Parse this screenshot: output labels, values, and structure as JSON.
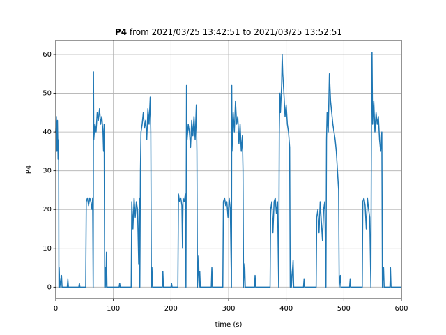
{
  "chart_data": {
    "type": "line",
    "title": {
      "bold": "P4",
      "rest": "from 2021/03/25 13:42:51 to 2021/03/25 13:52:51"
    },
    "x_label": "time (s)",
    "y_label": "P4",
    "xlim": [
      0,
      600
    ],
    "ylim": [
      -3.0,
      63.6
    ],
    "xticks": [
      0,
      100,
      200,
      300,
      400,
      500,
      600
    ],
    "yticks": [
      0,
      10,
      20,
      30,
      40,
      50,
      60
    ],
    "grid": true,
    "series": [
      {
        "name": "P4",
        "color": "#1f77b4",
        "x": [
          0,
          1,
          2,
          3,
          4,
          5,
          5.5,
          6,
          7,
          10,
          11,
          20,
          21,
          22,
          40,
          41,
          42,
          50,
          52,
          53,
          55,
          57,
          59,
          61,
          63,
          64,
          65,
          65.5,
          66,
          68,
          70,
          72,
          74,
          76,
          78,
          80,
          82,
          83,
          84,
          85,
          86,
          87,
          88,
          89,
          95,
          110,
          111,
          112,
          131,
          132,
          134,
          136,
          138,
          140,
          142,
          144,
          145,
          146,
          147,
          148,
          150,
          152,
          154,
          156,
          158,
          160,
          162,
          164,
          165,
          166,
          167,
          168,
          185,
          186,
          187,
          200,
          201,
          202,
          212,
          213,
          215,
          217,
          219,
          220,
          221,
          223,
          225,
          226,
          227,
          228,
          230,
          232,
          234,
          236,
          238,
          240,
          242,
          244,
          245,
          246,
          248,
          249,
          250,
          251,
          270,
          271,
          272,
          290,
          291,
          293,
          295,
          297,
          299,
          301,
          303,
          305,
          305.5,
          306,
          308,
          310,
          312,
          314,
          316,
          318,
          320,
          322,
          324,
          325,
          326,
          328,
          329,
          345,
          346,
          347,
          372,
          373,
          375,
          377,
          379,
          381,
          383,
          385,
          387,
          388,
          389,
          390,
          392,
          393,
          394,
          396,
          398,
          400,
          402,
          404,
          406,
          407,
          408,
          409,
          412,
          413,
          430,
          431,
          432,
          452,
          453,
          455,
          457,
          459,
          461,
          463,
          465,
          467,
          469,
          470,
          471,
          473,
          475,
          477,
          479,
          481,
          483,
          485,
          487,
          489,
          491,
          492,
          494,
          495,
          510,
          511,
          512,
          532,
          533,
          535,
          537,
          539,
          541,
          543,
          545,
          547,
          548,
          549,
          550,
          552,
          554,
          556,
          558,
          560,
          562,
          564,
          566,
          567,
          569,
          570,
          580,
          581,
          582,
          600
        ],
        "values": [
          40,
          44,
          35,
          43,
          33,
          38,
          0,
          5,
          0,
          3,
          0,
          0,
          2,
          0,
          0,
          1,
          0,
          0,
          0,
          22,
          23,
          21,
          23,
          22,
          20,
          23,
          0,
          55.5,
          38,
          42,
          40,
          45,
          43,
          46,
          42,
          44,
          40,
          35,
          42,
          0,
          5,
          0,
          9,
          0,
          0,
          0,
          1,
          0,
          0,
          22,
          15,
          23,
          18,
          22,
          20,
          6,
          23,
          0,
          30,
          40,
          42,
          45,
          41,
          43,
          38,
          46,
          42,
          49,
          40,
          0,
          5,
          0,
          0,
          4,
          0,
          0,
          1,
          0,
          0,
          24,
          22,
          23,
          21,
          10,
          23,
          22,
          24,
          0,
          52,
          38,
          42,
          40,
          36,
          43,
          39,
          44,
          38,
          47,
          35,
          0,
          8,
          0,
          4,
          0,
          0,
          5,
          0,
          0,
          22,
          23,
          21,
          22,
          18,
          23,
          20,
          0,
          52,
          35,
          45,
          40,
          48,
          42,
          44,
          37,
          42,
          35,
          39,
          30,
          0,
          6,
          0,
          0,
          3,
          0,
          0,
          20,
          22,
          14,
          22,
          23,
          19,
          22,
          0,
          40,
          50,
          45,
          52,
          60,
          55,
          50,
          44,
          47,
          42,
          40,
          36,
          0,
          5,
          0,
          7,
          0,
          0,
          2,
          0,
          0,
          18,
          20,
          14,
          22,
          17,
          12,
          20,
          22,
          0,
          38,
          45,
          40,
          55,
          48,
          45,
          42,
          40,
          38,
          35,
          30,
          25,
          0,
          3,
          0,
          0,
          2,
          0,
          0,
          22,
          23,
          21,
          15,
          23,
          20,
          18,
          0,
          45,
          60.5,
          42,
          48,
          40,
          45,
          42,
          44,
          38,
          35,
          40,
          0,
          5,
          0,
          0,
          5,
          0,
          0
        ]
      }
    ]
  }
}
